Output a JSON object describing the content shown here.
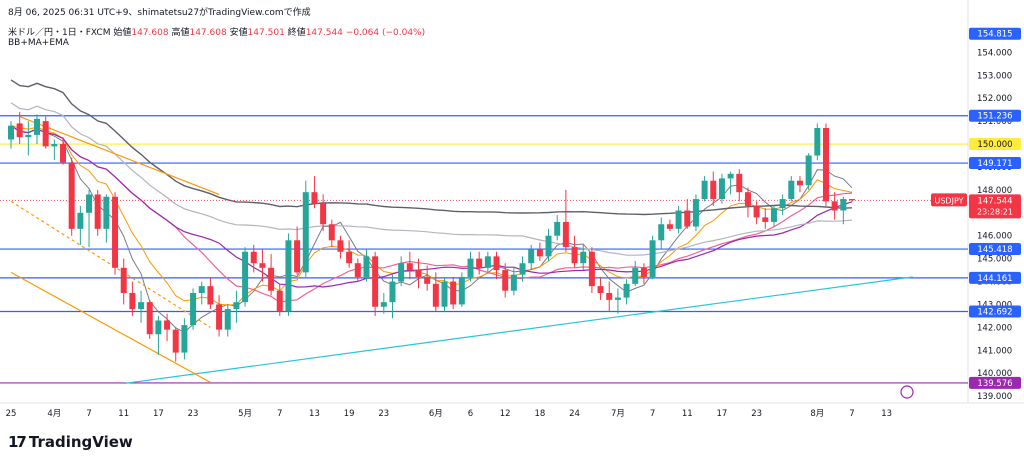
{
  "header": {
    "date_line": "8月 06, 2025 06:31 UTC+9、shimatetsu27がTradingView.comで作成",
    "symbol": "米ドル／円・1日・FXCM",
    "open_label": "始値",
    "open": "147.608",
    "high_label": "高値",
    "high": "147.608",
    "low_label": "安値",
    "low": "147.501",
    "close_label": "終値",
    "close": "147.544",
    "change": "−0.064 (−0.04%)",
    "indicators": "BB+MA+EMA"
  },
  "logo": {
    "text": "TradingView",
    "icon": "tradingview-logo-icon"
  },
  "colors": {
    "up": "#26a69a",
    "down": "#f23645",
    "hline_blue": "#2962ff",
    "hline_yellow": "#ffeb3b",
    "hline_purple": "#9c27b0",
    "trend_cyan": "#26c6da",
    "channel_orange": "#ff9800"
  },
  "chart_data": {
    "type": "candlestick",
    "title": "",
    "ylim": [
      138.7,
      155.5
    ],
    "y_ticks": [
      "154.000",
      "153.000",
      "152.000",
      "151.000",
      "150.000",
      "149.000",
      "148.000",
      "147.000",
      "146.000",
      "145.000",
      "144.000",
      "143.000",
      "142.000",
      "141.000",
      "140.000",
      "139.000"
    ],
    "x_ticks": [
      {
        "label": "25",
        "i": 0
      },
      {
        "label": "4月",
        "i": 5
      },
      {
        "label": "7",
        "i": 9
      },
      {
        "label": "11",
        "i": 13
      },
      {
        "label": "17",
        "i": 17
      },
      {
        "label": "23",
        "i": 21
      },
      {
        "label": "5月",
        "i": 27
      },
      {
        "label": "7",
        "i": 31
      },
      {
        "label": "13",
        "i": 35
      },
      {
        "label": "19",
        "i": 39
      },
      {
        "label": "23",
        "i": 43
      },
      {
        "label": "6月",
        "i": 49
      },
      {
        "label": "6",
        "i": 53
      },
      {
        "label": "12",
        "i": 57
      },
      {
        "label": "18",
        "i": 61
      },
      {
        "label": "24",
        "i": 65
      },
      {
        "label": "7月",
        "i": 70
      },
      {
        "label": "7",
        "i": 74
      },
      {
        "label": "11",
        "i": 78
      },
      {
        "label": "17",
        "i": 82
      },
      {
        "label": "23",
        "i": 86
      },
      {
        "label": "8月",
        "i": 93
      },
      {
        "label": "7",
        "i": 97
      },
      {
        "label": "13",
        "i": 101
      }
    ],
    "price_labels": [
      {
        "text": "154.815",
        "value": 154.815,
        "color": "#2962ff",
        "fg": "#ffffff"
      },
      {
        "text": "151.236",
        "value": 151.236,
        "color": "#2962ff",
        "fg": "#ffffff"
      },
      {
        "text": "150.000",
        "value": 150.0,
        "color": "#ffeb3b",
        "fg": "#131722"
      },
      {
        "text": "149.171",
        "value": 149.171,
        "color": "#2962ff",
        "fg": "#ffffff"
      },
      {
        "text": "USDJPY",
        "value": 147.544,
        "color": "#f23645",
        "fg": "#ffffff",
        "side": "left"
      },
      {
        "text": "147.544",
        "value": 147.544,
        "color": "#f23645",
        "fg": "#ffffff",
        "sub": "23:28:21"
      },
      {
        "text": "145.418",
        "value": 145.418,
        "color": "#2962ff",
        "fg": "#ffffff"
      },
      {
        "text": "144.161",
        "value": 144.161,
        "color": "#2962ff",
        "fg": "#ffffff"
      },
      {
        "text": "142.692",
        "value": 142.692,
        "color": "#2962ff",
        "fg": "#ffffff"
      },
      {
        "text": "139.576",
        "value": 139.576,
        "color": "#9c27b0",
        "fg": "#ffffff"
      }
    ],
    "hlines": [
      {
        "value": 151.236,
        "color": "#2962ff"
      },
      {
        "value": 150.0,
        "color": "#ffeb3b"
      },
      {
        "value": 149.171,
        "color": "#2962ff"
      },
      {
        "value": 145.418,
        "color": "#2962ff"
      },
      {
        "value": 144.161,
        "color": "#2962ff"
      },
      {
        "value": 142.692,
        "color": "#2962ff"
      },
      {
        "value": 139.576,
        "color": "#9c27b0"
      }
    ],
    "candles": [
      [
        150.2,
        151.0,
        149.8,
        150.8
      ],
      [
        150.9,
        151.4,
        150.0,
        150.3
      ],
      [
        150.3,
        151.0,
        149.5,
        150.4
      ],
      [
        150.4,
        151.3,
        150.0,
        151.1
      ],
      [
        151.0,
        151.2,
        149.8,
        149.9
      ],
      [
        149.9,
        150.2,
        149.3,
        150.0
      ],
      [
        150.0,
        150.3,
        149.1,
        149.2
      ],
      [
        149.2,
        149.4,
        146.0,
        146.3
      ],
      [
        146.3,
        147.3,
        145.6,
        147.0
      ],
      [
        147.0,
        148.0,
        145.5,
        147.8
      ],
      [
        147.8,
        148.0,
        146.0,
        146.3
      ],
      [
        146.3,
        147.8,
        145.7,
        147.7
      ],
      [
        147.7,
        147.9,
        144.3,
        144.6
      ],
      [
        144.6,
        145.0,
        143.0,
        143.5
      ],
      [
        143.5,
        144.0,
        142.5,
        142.8
      ],
      [
        142.8,
        143.6,
        142.2,
        143.1
      ],
      [
        143.1,
        143.2,
        141.5,
        141.7
      ],
      [
        141.7,
        142.5,
        140.8,
        142.3
      ],
      [
        142.3,
        142.6,
        141.4,
        141.9
      ],
      [
        141.9,
        142.0,
        140.5,
        140.9
      ],
      [
        140.9,
        142.4,
        140.6,
        142.1
      ],
      [
        142.1,
        143.7,
        141.9,
        143.5
      ],
      [
        143.5,
        144.0,
        143.0,
        143.8
      ],
      [
        143.8,
        144.2,
        142.8,
        143.0
      ],
      [
        143.0,
        143.4,
        141.6,
        141.9
      ],
      [
        141.9,
        143.0,
        141.6,
        142.8
      ],
      [
        142.8,
        143.6,
        142.2,
        143.1
      ],
      [
        143.1,
        145.5,
        142.9,
        145.3
      ],
      [
        145.3,
        145.6,
        144.4,
        144.8
      ],
      [
        144.8,
        145.4,
        144.0,
        144.6
      ],
      [
        144.6,
        145.2,
        143.4,
        143.6
      ],
      [
        143.6,
        143.9,
        142.5,
        142.7
      ],
      [
        142.7,
        146.1,
        142.5,
        145.8
      ],
      [
        145.8,
        146.4,
        144.3,
        144.4
      ],
      [
        144.4,
        148.4,
        144.2,
        147.9
      ],
      [
        147.9,
        148.6,
        147.2,
        147.4
      ],
      [
        147.4,
        147.8,
        146.2,
        146.5
      ],
      [
        146.5,
        146.7,
        145.5,
        145.8
      ],
      [
        145.8,
        146.0,
        145.0,
        145.3
      ],
      [
        145.3,
        145.8,
        144.6,
        144.8
      ],
      [
        144.8,
        145.0,
        144.0,
        144.2
      ],
      [
        144.2,
        145.4,
        144.0,
        145.1
      ],
      [
        145.1,
        145.3,
        142.5,
        142.9
      ],
      [
        142.9,
        143.5,
        142.6,
        143.1
      ],
      [
        143.1,
        144.3,
        142.4,
        144.0
      ],
      [
        144.0,
        145.1,
        143.8,
        144.8
      ],
      [
        144.8,
        145.3,
        144.1,
        144.5
      ],
      [
        144.5,
        145.0,
        143.7,
        144.2
      ],
      [
        144.2,
        144.7,
        143.6,
        143.9
      ],
      [
        143.9,
        144.4,
        142.7,
        142.9
      ],
      [
        142.9,
        144.2,
        142.7,
        144.0
      ],
      [
        144.0,
        144.2,
        142.8,
        143.0
      ],
      [
        143.0,
        144.4,
        142.9,
        144.2
      ],
      [
        144.2,
        145.3,
        144.0,
        145.0
      ],
      [
        145.0,
        145.3,
        144.3,
        144.6
      ],
      [
        144.6,
        145.3,
        144.4,
        145.1
      ],
      [
        145.1,
        145.3,
        144.1,
        144.5
      ],
      [
        144.5,
        144.8,
        143.3,
        143.6
      ],
      [
        143.6,
        144.6,
        143.4,
        144.3
      ],
      [
        144.3,
        145.1,
        144.0,
        144.8
      ],
      [
        144.8,
        145.6,
        144.5,
        145.4
      ],
      [
        145.4,
        145.7,
        144.9,
        145.1
      ],
      [
        145.1,
        146.3,
        144.9,
        146.0
      ],
      [
        146.0,
        146.9,
        145.8,
        146.6
      ],
      [
        146.6,
        148.0,
        145.3,
        145.5
      ],
      [
        145.5,
        146.0,
        144.6,
        144.8
      ],
      [
        144.8,
        145.6,
        144.5,
        145.3
      ],
      [
        145.3,
        145.5,
        143.5,
        143.8
      ],
      [
        143.8,
        144.2,
        143.2,
        143.5
      ],
      [
        143.5,
        144.0,
        142.7,
        143.2
      ],
      [
        143.2,
        143.7,
        142.6,
        143.3
      ],
      [
        143.3,
        144.1,
        143.0,
        143.9
      ],
      [
        143.9,
        144.9,
        143.8,
        144.6
      ],
      [
        144.6,
        144.8,
        143.9,
        144.2
      ],
      [
        144.2,
        146.0,
        144.1,
        145.8
      ],
      [
        145.8,
        146.8,
        145.4,
        146.5
      ],
      [
        146.5,
        146.7,
        146.2,
        146.3
      ],
      [
        146.3,
        147.3,
        146.1,
        147.1
      ],
      [
        147.1,
        147.6,
        146.3,
        146.4
      ],
      [
        146.4,
        147.8,
        146.2,
        147.6
      ],
      [
        147.6,
        148.6,
        147.5,
        148.4
      ],
      [
        148.4,
        148.8,
        147.3,
        147.6
      ],
      [
        147.6,
        148.7,
        147.4,
        148.5
      ],
      [
        148.5,
        148.8,
        147.8,
        148.7
      ],
      [
        148.7,
        148.9,
        147.5,
        147.9
      ],
      [
        147.9,
        148.1,
        146.8,
        147.3
      ],
      [
        147.3,
        147.5,
        146.5,
        146.8
      ],
      [
        146.8,
        147.2,
        146.3,
        146.6
      ],
      [
        146.6,
        147.3,
        146.4,
        147.2
      ],
      [
        147.2,
        147.8,
        146.9,
        147.6
      ],
      [
        147.6,
        148.6,
        147.5,
        148.4
      ],
      [
        148.4,
        148.6,
        147.9,
        148.2
      ],
      [
        148.2,
        149.6,
        148.0,
        149.5
      ],
      [
        149.5,
        150.9,
        149.3,
        150.7
      ],
      [
        150.7,
        150.9,
        147.3,
        147.5
      ],
      [
        147.5,
        147.9,
        146.7,
        147.1
      ],
      [
        147.1,
        147.7,
        146.5,
        147.6
      ],
      [
        147.6,
        147.6,
        147.5,
        147.544
      ]
    ]
  }
}
